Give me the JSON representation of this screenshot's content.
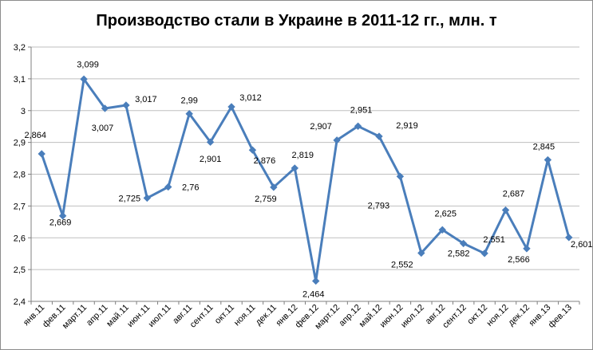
{
  "chart_data": {
    "type": "line",
    "title": "Производство стали в Украине в 2011-12 гг., млн. т",
    "xlabel": "",
    "ylabel": "",
    "ylim": [
      2.4,
      3.2
    ],
    "yticks": [
      "2,4",
      "2,5",
      "2,6",
      "2,7",
      "2,8",
      "2,9",
      "3",
      "3,1",
      "3,2"
    ],
    "ytick_values": [
      2.4,
      2.5,
      2.6,
      2.7,
      2.8,
      2.9,
      3.0,
      3.1,
      3.2
    ],
    "grid": true,
    "legend": "none",
    "categories": [
      "янв.11",
      "фев.11",
      "март.11",
      "апр.11",
      "май.11",
      "июн.11",
      "июл.11",
      "авг.11",
      "сент.11",
      "окт.11",
      "ноя.11",
      "дек.11",
      "янв.12",
      "фев.12",
      "март.12",
      "апр.12",
      "май.12",
      "июн.12",
      "июл.12",
      "авг.12",
      "сент.12",
      "окт.12",
      "ноя.12",
      "дек.12",
      "янв.13",
      "фев.13"
    ],
    "series": [
      {
        "values": [
          2.864,
          2.669,
          3.099,
          3.007,
          3.017,
          2.725,
          2.76,
          2.99,
          2.901,
          3.012,
          2.876,
          2.759,
          2.819,
          2.464,
          2.907,
          2.951,
          2.919,
          2.793,
          2.552,
          2.625,
          2.582,
          2.551,
          2.687,
          2.566,
          2.845,
          2.601
        ],
        "data_labels": [
          null,
          "2,669",
          "3,099",
          null,
          null,
          null,
          null,
          "2,99",
          null,
          "3,012",
          null,
          null,
          "2,819",
          null,
          "2,907",
          "2,951",
          "2,919",
          "2,793",
          "2,552",
          "2,625",
          "2,582",
          "2,551",
          "2,687",
          "2,566",
          "2,845",
          "2,601"
        ],
        "data_labels_extra": [
          "2,864",
          null,
          null,
          "3,007",
          "3,017",
          "2,725",
          "2,76",
          null,
          "2,901",
          null,
          "2,876",
          "2,759",
          null,
          "2,464",
          null,
          null,
          null,
          null,
          null,
          null,
          null,
          null,
          null,
          null,
          null,
          null
        ]
      }
    ],
    "colors": {
      "line": "#4a7ebb",
      "marker": "#4a7ebb",
      "grid": "#bfbfbf",
      "axis": "#808080"
    }
  }
}
